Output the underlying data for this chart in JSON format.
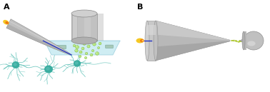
{
  "fig_width": 3.78,
  "fig_height": 1.29,
  "dpi": 100,
  "bg_color": "#ffffff",
  "label_A": "A",
  "label_B": "B",
  "label_fontsize": 8,
  "label_fontweight": "bold",
  "neuron_color": "#5abfb5",
  "neuron_body_color": "#3aada0",
  "pipette_body_color": "#c8c8c8",
  "flame_yellow": "#f5c518",
  "flame_orange": "#f07010",
  "droplet_color": "#b8e878",
  "droplet_edge": "#78b838",
  "platform_color": "#c0e8f0",
  "platform_edge": "#90c8d8",
  "cylinder_color": "#b8b8b8",
  "cone_color_light": "#d0d0d0",
  "cone_color_mid": "#b8b8b8",
  "cone_color_dark": "#989898",
  "spray_color": "#c0e020",
  "blue_wire": "#2030c0",
  "ms_color": "#c0c0c0"
}
